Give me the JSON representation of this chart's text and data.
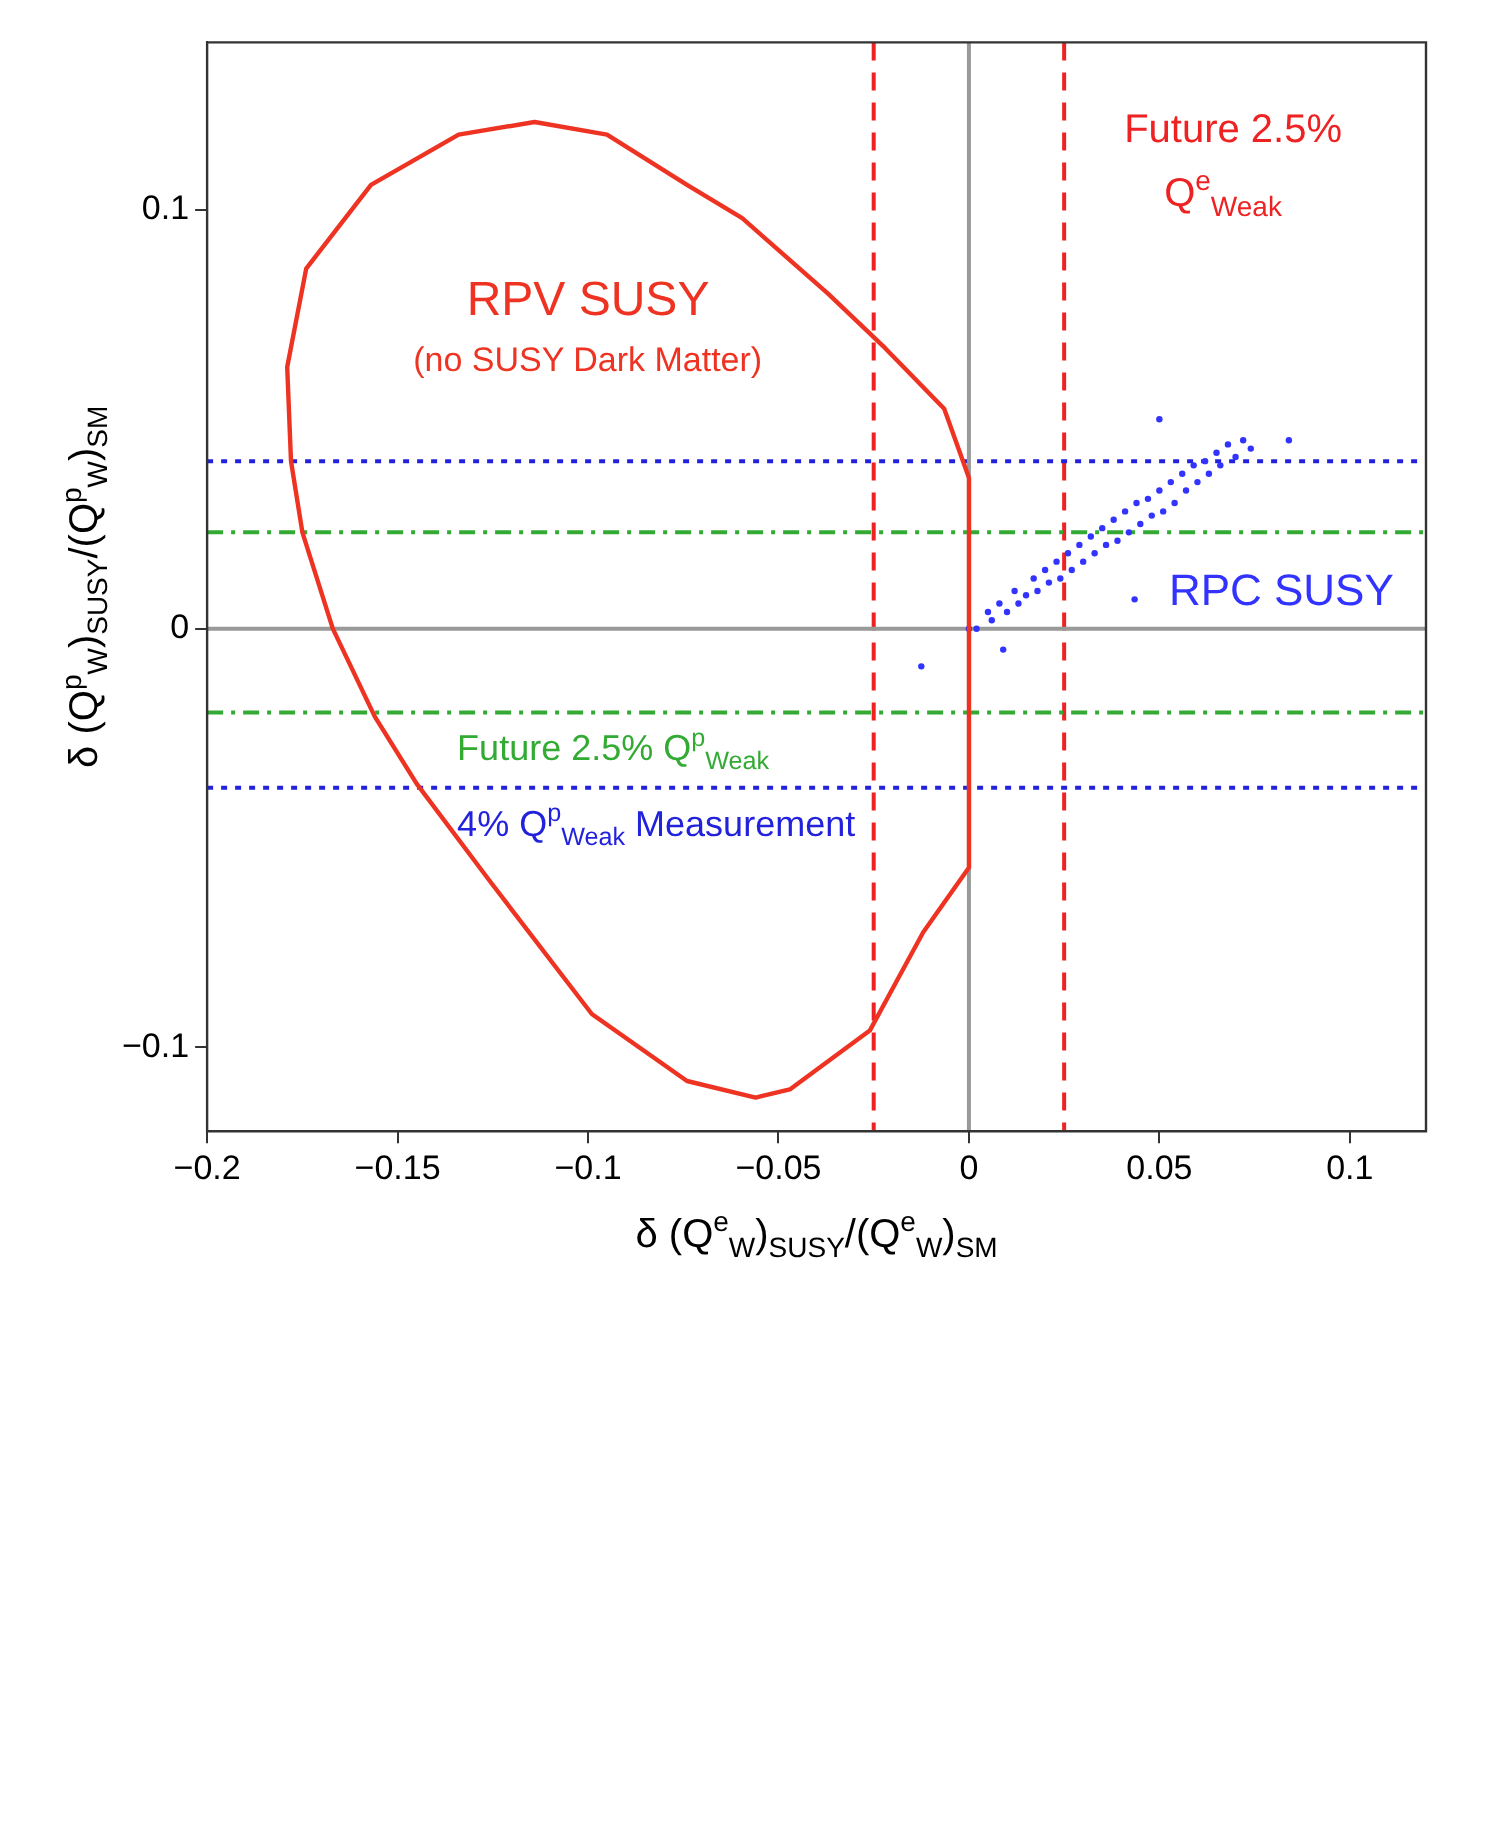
{
  "chart_data": {
    "type": "scatter",
    "xlabel": "δ (Q$^{e}$$_{W}$)$_{SUSY}$/(Q$^{e}$$_{W}$)$_{SM}$",
    "ylabel": "δ (Q$^{p}$$_{W}$)$_{SUSY}$/(Q$^{p}$$_{W}$)$_{SM}$",
    "xlim": [
      -0.2,
      0.12
    ],
    "ylim": [
      -0.12,
      0.14
    ],
    "xticks": [
      {
        "value": -0.2,
        "label": "−0.2"
      },
      {
        "value": -0.15,
        "label": "−0.15"
      },
      {
        "value": -0.1,
        "label": "−0.1"
      },
      {
        "value": -0.05,
        "label": "−0.05"
      },
      0,
      0.05,
      0.1
    ],
    "yticks": [
      {
        "value": -0.1,
        "label": "−0.1"
      },
      0,
      0.1
    ],
    "grid": false,
    "series": [
      {
        "name": "RPC SUSY",
        "type": "scatter",
        "color": "#3333ff",
        "marker": "circle",
        "x": [
          0.0,
          0.002,
          0.005,
          0.006,
          0.008,
          0.01,
          0.012,
          0.013,
          0.015,
          0.017,
          0.018,
          0.02,
          0.021,
          0.023,
          0.024,
          0.026,
          0.027,
          0.029,
          0.03,
          0.032,
          0.033,
          0.035,
          0.036,
          0.038,
          0.039,
          0.041,
          0.042,
          0.044,
          0.045,
          0.047,
          0.048,
          0.05,
          0.051,
          0.053,
          0.054,
          0.056,
          0.057,
          0.059,
          0.06,
          0.062,
          0.063,
          0.065,
          0.066,
          0.068,
          0.07,
          0.072,
          0.074,
          0.05,
          -0.0125,
          0.084,
          0.009,
          0.0435
        ],
        "values": [
          0.0,
          0.0,
          0.004,
          0.002,
          0.006,
          0.004,
          0.009,
          0.006,
          0.008,
          0.012,
          0.009,
          0.014,
          0.011,
          0.016,
          0.012,
          0.018,
          0.014,
          0.02,
          0.016,
          0.022,
          0.018,
          0.024,
          0.02,
          0.026,
          0.021,
          0.028,
          0.023,
          0.03,
          0.025,
          0.031,
          0.027,
          0.033,
          0.028,
          0.035,
          0.03,
          0.037,
          0.033,
          0.039,
          0.035,
          0.04,
          0.037,
          0.042,
          0.039,
          0.044,
          0.041,
          0.045,
          0.043,
          0.05,
          -0.009,
          0.045,
          -0.005,
          0.007
        ]
      }
    ],
    "ref_lines": [
      {
        "axis": "x",
        "value": 0.025,
        "label": "Future 2.5% Q$^{e}$$_{Weak}$",
        "color": "#ee2222",
        "line_style": "dashed"
      },
      {
        "axis": "x",
        "value": -0.025,
        "color": "#ee2222",
        "line_style": "dashed"
      },
      {
        "axis": "y",
        "value": 0.04,
        "color": "#2222dd",
        "line_style": "dotted"
      },
      {
        "axis": "y",
        "value": -0.038,
        "label": "4% Q$^{p}$$_{Weak}$ Measurement",
        "color": "#2222dd",
        "line_style": "dotted"
      },
      {
        "axis": "y",
        "value": 0.023,
        "color": "#33aa33",
        "line_style": "dashdot"
      },
      {
        "axis": "y",
        "value": -0.02,
        "label": "Future 2.5% Q$^{p}$$_{Weak}$",
        "color": "#33aa33",
        "line_style": "dashdot"
      },
      {
        "axis": "x",
        "value": 0,
        "color": "#999999",
        "line_style": "solid"
      },
      {
        "axis": "y",
        "value": 0,
        "color": "#999999",
        "line_style": "solid"
      }
    ],
    "annotations": [
      "RPV SUSY",
      "(no SUSY Dark Matter)"
    ]
  }
}
